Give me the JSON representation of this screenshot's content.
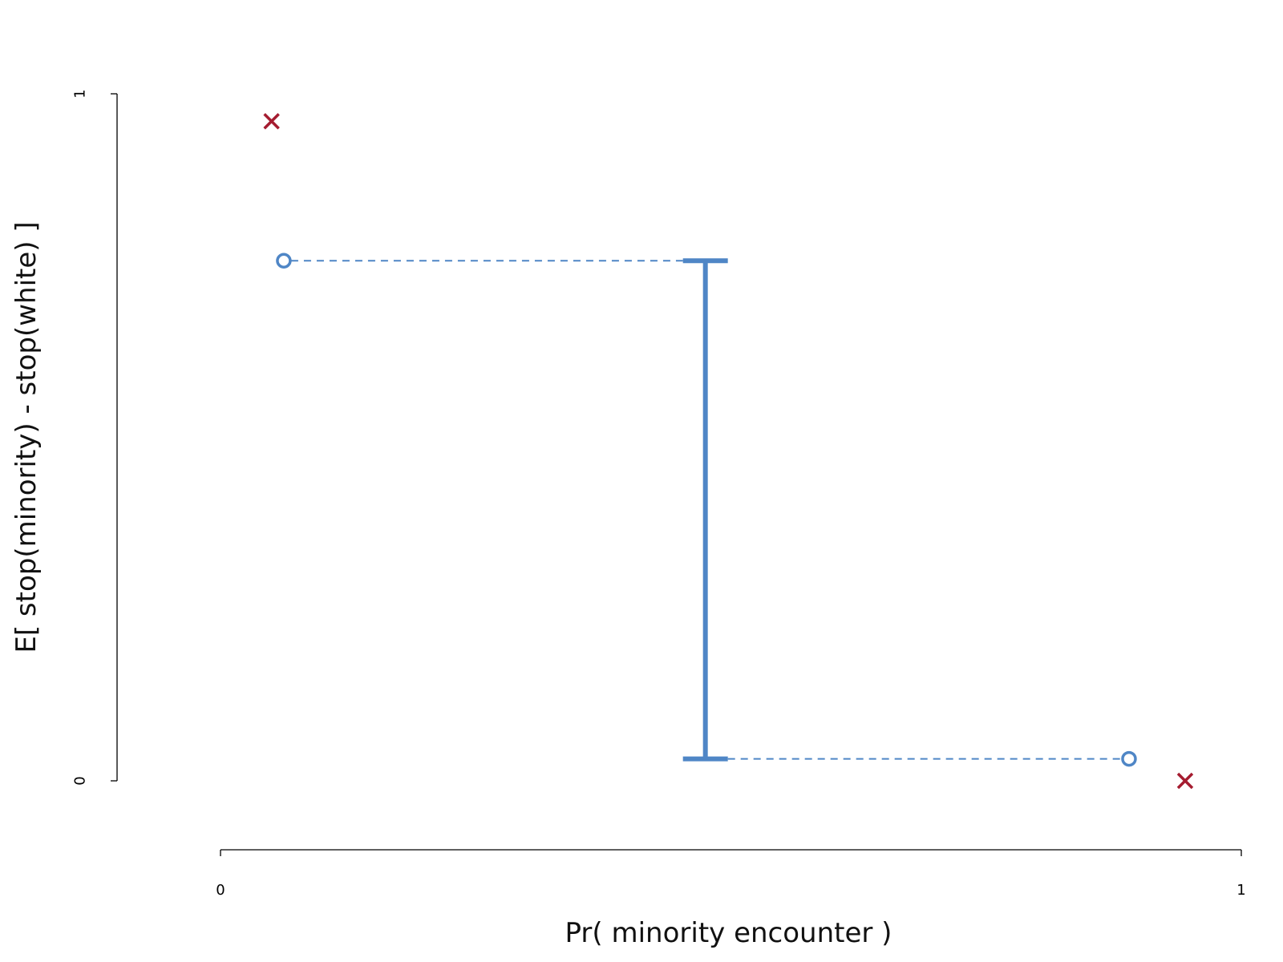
{
  "chart_data": {
    "type": "scatter",
    "title": "",
    "xlabel": "Pr( minority encounter )",
    "ylabel": "E[ stop(minority) - stop(white) ]",
    "xlim": [
      0,
      1
    ],
    "ylim": [
      0,
      1
    ],
    "x_ticks": [
      "0",
      "1"
    ],
    "y_ticks": [
      "0",
      "1"
    ],
    "grid": false,
    "points": {
      "crosses": [
        {
          "x": 0.05,
          "y": 0.96
        },
        {
          "x": 0.945,
          "y": 0.0
        }
      ],
      "circles": [
        {
          "x": 0.062,
          "y": 0.757
        },
        {
          "x": 0.89,
          "y": 0.032
        }
      ]
    },
    "interval": {
      "x": 0.475,
      "low": 0.032,
      "high": 0.757
    },
    "colors": {
      "cross": "#a51c30",
      "interval": "#4f86c6",
      "axis": "#000000"
    }
  }
}
